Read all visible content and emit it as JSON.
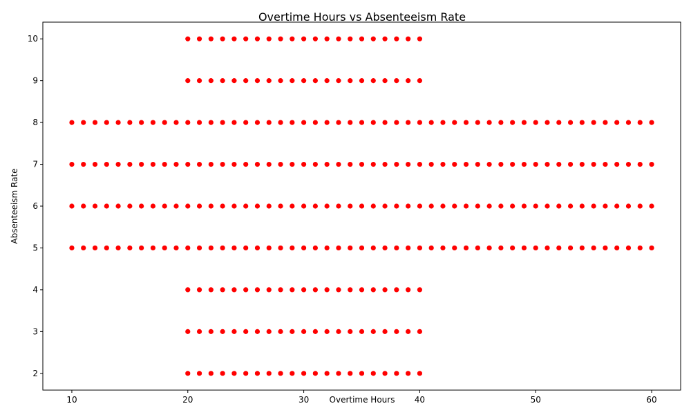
{
  "chart_data": {
    "type": "scatter",
    "title": "Overtime Hours vs Absenteeism Rate",
    "xlabel": "Overtime Hours",
    "ylabel": "Absenteeism Rate",
    "xlim": [
      7.5,
      62.5
    ],
    "ylim": [
      1.6,
      10.4
    ],
    "xticks": [
      10,
      20,
      30,
      40,
      50,
      60
    ],
    "yticks": [
      2,
      3,
      4,
      5,
      6,
      7,
      8,
      9,
      10
    ],
    "grid": false,
    "marker_color": "#ff0000",
    "groups": [
      {
        "x_range": [
          10,
          60
        ],
        "y_values": [
          5,
          6,
          7,
          8
        ]
      },
      {
        "x_range": [
          20,
          40
        ],
        "y_values": [
          2,
          3,
          4,
          9,
          10
        ]
      }
    ]
  }
}
